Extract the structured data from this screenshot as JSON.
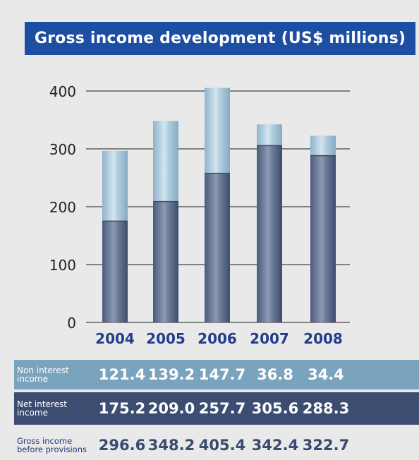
{
  "title": "Gross income development (US$ millions)",
  "colors": {
    "title_bg": "#1c4ea1",
    "bar_net_interest": "#5f6e8e",
    "bar_non_interest": "#a9c9dc",
    "band_non_interest": "#7aa3be",
    "band_net_interest": "#3d4d72",
    "year_labels": "#1f3f8a"
  },
  "chart_data": {
    "type": "bar",
    "stacked": true,
    "categories": [
      "2004",
      "2005",
      "2006",
      "2007",
      "2008"
    ],
    "series": [
      {
        "name": "Net interest income",
        "values": [
          175.2,
          209.0,
          257.7,
          305.6,
          288.3
        ]
      },
      {
        "name": "Non interest income",
        "values": [
          121.4,
          139.2,
          147.7,
          36.8,
          34.4
        ]
      }
    ],
    "totals": [
      296.6,
      348.2,
      405.4,
      342.4,
      322.7
    ],
    "ylim": [
      0,
      400
    ],
    "yticks": [
      0,
      100,
      200,
      300,
      400
    ],
    "grid": true
  },
  "table": {
    "rows": [
      {
        "label": "Non interest\nincome",
        "values": [
          "121.4",
          "139.2",
          "147.7",
          "36.8",
          "34.4"
        ]
      },
      {
        "label": "Net interest\nincome",
        "values": [
          "175.2",
          "209.0",
          "257.7",
          "305.6",
          "288.3"
        ]
      },
      {
        "label": "Gross income\nbefore provisions",
        "values": [
          "296.6",
          "348.2",
          "405.4",
          "342.4",
          "322.7"
        ]
      }
    ]
  }
}
